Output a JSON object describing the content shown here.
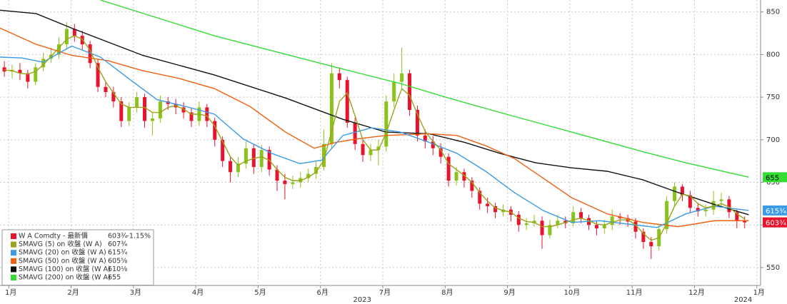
{
  "chart_data": {
    "type": "candlestick",
    "xlim": [
      -0.14,
      12.06
    ],
    "xticks": [
      {
        "value": 0,
        "label": "1月"
      },
      {
        "value": 1,
        "label": "2月"
      },
      {
        "value": 2,
        "label": "3月"
      },
      {
        "value": 3,
        "label": "4月"
      },
      {
        "value": 4,
        "label": "5月"
      },
      {
        "value": 5,
        "label": "6月"
      },
      {
        "value": 6,
        "label": "7月"
      },
      {
        "value": 7,
        "label": "8月"
      },
      {
        "value": 8,
        "label": "9月"
      },
      {
        "value": 9,
        "label": "10月"
      },
      {
        "value": 10,
        "label": "11月"
      },
      {
        "value": 11,
        "label": "12月"
      },
      {
        "value": 12,
        "label": "1月"
      }
    ],
    "year_labels": [
      {
        "value": 5.67,
        "label": "2023"
      },
      {
        "value": 11.78,
        "label": "2024"
      }
    ],
    "ylim": [
      529,
      864
    ],
    "yticks": [
      550,
      600,
      650,
      700,
      750,
      800,
      850
    ],
    "grid": true,
    "legend": "lower-left",
    "series": [
      {
        "name": "W A Comdty - 最新價",
        "value_label": "603¾",
        "change_label": "-1.15%",
        "color": "#e8132c",
        "up_color": "#8cc21c",
        "down_color": "#e8132c",
        "price_tag": true,
        "x": [
          -0.07,
          0.055,
          0.18,
          0.305,
          0.43,
          0.555,
          0.68,
          0.805,
          0.93,
          1.055,
          1.18,
          1.305,
          1.43,
          1.555,
          1.68,
          1.805,
          1.93,
          2.055,
          2.18,
          2.305,
          2.43,
          2.555,
          2.68,
          2.805,
          2.93,
          3.055,
          3.18,
          3.305,
          3.43,
          3.555,
          3.68,
          3.805,
          3.93,
          4.055,
          4.18,
          4.305,
          4.43,
          4.555,
          4.68,
          4.805,
          4.93,
          5.055,
          5.18,
          5.305,
          5.43,
          5.555,
          5.68,
          5.805,
          5.93,
          6.055,
          6.18,
          6.305,
          6.43,
          6.555,
          6.68,
          6.805,
          6.93,
          7.055,
          7.18,
          7.305,
          7.43,
          7.555,
          7.68,
          7.805,
          7.93,
          8.055,
          8.18,
          8.305,
          8.43,
          8.555,
          8.68,
          8.805,
          8.93,
          9.055,
          9.18,
          9.305,
          9.43,
          9.555,
          9.68,
          9.805,
          9.93,
          10.055,
          10.18,
          10.305,
          10.43,
          10.555,
          10.68,
          10.805,
          10.93,
          11.055,
          11.18,
          11.305,
          11.43,
          11.555,
          11.68,
          11.805
        ],
        "open": [
          785,
          780,
          782,
          778,
          768,
          785,
          795,
          800,
          812,
          830,
          822,
          812,
          790,
          762,
          756,
          745,
          722,
          738,
          750,
          722,
          725,
          745,
          742,
          738,
          732,
          722,
          738,
          722,
          700,
          675,
          662,
          672,
          690,
          668,
          688,
          665,
          652,
          648,
          650,
          655,
          660,
          668,
          695,
          778,
          770,
          720,
          695,
          682,
          688,
          692,
          745,
          768,
          778,
          735,
          705,
          698,
          690,
          680,
          652,
          662,
          652,
          640,
          625,
          622,
          615,
          618,
          612,
          600,
          602,
          605,
          588,
          600,
          605,
          602,
          615,
          608,
          600,
          596,
          600,
          610,
          608,
          604,
          592,
          580,
          575,
          595,
          628,
          645,
          635,
          620,
          616,
          618,
          628,
          630,
          615,
          605
        ],
        "high": [
          792,
          788,
          790,
          782,
          790,
          802,
          808,
          820,
          838,
          836,
          828,
          816,
          794,
          768,
          762,
          750,
          744,
          756,
          754,
          732,
          752,
          750,
          748,
          744,
          738,
          745,
          742,
          726,
          704,
          680,
          680,
          698,
          694,
          694,
          692,
          670,
          660,
          658,
          662,
          666,
          674,
          712,
          790,
          785,
          774,
          726,
          700,
          695,
          700,
          752,
          778,
          808,
          782,
          740,
          712,
          704,
          696,
          684,
          668,
          666,
          656,
          644,
          632,
          626,
          624,
          622,
          616,
          608,
          612,
          610,
          606,
          612,
          610,
          622,
          620,
          612,
          604,
          606,
          618,
          614,
          612,
          608,
          596,
          586,
          600,
          634,
          650,
          648,
          640,
          626,
          624,
          640,
          638,
          634,
          618,
          610
        ],
        "low": [
          774,
          772,
          770,
          760,
          764,
          780,
          790,
          795,
          806,
          815,
          805,
          784,
          756,
          750,
          738,
          715,
          716,
          732,
          714,
          705,
          720,
          735,
          730,
          725,
          715,
          716,
          715,
          692,
          668,
          650,
          656,
          666,
          660,
          662,
          658,
          640,
          630,
          642,
          644,
          650,
          654,
          664,
          690,
          760,
          714,
          688,
          674,
          675,
          670,
          686,
          738,
          760,
          728,
          698,
          690,
          682,
          672,
          645,
          646,
          644,
          632,
          618,
          614,
          608,
          610,
          604,
          592,
          594,
          598,
          572,
          584,
          596,
          596,
          598,
          602,
          594,
          588,
          590,
          594,
          600,
          598,
          584,
          572,
          560,
          570,
          590,
          622,
          628,
          614,
          610,
          610,
          612,
          620,
          608,
          596,
          596
        ],
        "close": [
          780,
          782,
          778,
          768,
          785,
          795,
          800,
          812,
          830,
          822,
          812,
          790,
          762,
          756,
          745,
          722,
          738,
          750,
          722,
          725,
          745,
          742,
          738,
          732,
          722,
          738,
          722,
          700,
          675,
          662,
          672,
          690,
          668,
          688,
          665,
          652,
          648,
          650,
          655,
          660,
          668,
          695,
          778,
          770,
          720,
          695,
          682,
          688,
          692,
          745,
          768,
          778,
          735,
          705,
          698,
          690,
          680,
          652,
          662,
          652,
          640,
          625,
          622,
          615,
          618,
          612,
          600,
          602,
          605,
          588,
          600,
          605,
          602,
          615,
          608,
          600,
          596,
          600,
          610,
          608,
          604,
          592,
          580,
          575,
          595,
          628,
          645,
          635,
          620,
          616,
          618,
          628,
          630,
          615,
          605,
          603
        ]
      },
      {
        "name": "SMAVG (5)  on 收盤 (W A)",
        "value_label": "607¾",
        "color": "#9aa31a",
        "x": [
          -0.07,
          0.055,
          0.18,
          0.305,
          0.43,
          0.555,
          0.68,
          0.805,
          0.93,
          1.055,
          1.18,
          1.305,
          1.43,
          1.555,
          1.68,
          1.805,
          1.93,
          2.055,
          2.18,
          2.305,
          2.43,
          2.555,
          2.68,
          2.805,
          2.93,
          3.055,
          3.18,
          3.305,
          3.43,
          3.555,
          3.68,
          3.805,
          3.93,
          4.055,
          4.18,
          4.305,
          4.43,
          4.555,
          4.68,
          4.805,
          4.93,
          5.055,
          5.18,
          5.305,
          5.43,
          5.555,
          5.68,
          5.805,
          5.93,
          6.055,
          6.18,
          6.305,
          6.43,
          6.555,
          6.68,
          6.805,
          6.93,
          7.055,
          7.18,
          7.305,
          7.43,
          7.555,
          7.68,
          7.805,
          7.93,
          8.055,
          8.18,
          8.305,
          8.43,
          8.555,
          8.68,
          8.805,
          8.93,
          9.055,
          9.18,
          9.305,
          9.43,
          9.555,
          9.68,
          9.805,
          9.93,
          10.055,
          10.18,
          10.305,
          10.43,
          10.555,
          10.68,
          10.805,
          10.93,
          11.055,
          11.18,
          11.305,
          11.43,
          11.555,
          11.68,
          11.805
        ],
        "values": [
          782,
          781,
          778,
          777,
          780,
          788,
          798,
          808,
          818,
          822,
          818,
          805,
          785,
          768,
          755,
          742,
          738,
          738,
          738,
          732,
          732,
          738,
          740,
          736,
          730,
          730,
          728,
          716,
          698,
          680,
          670,
          675,
          678,
          680,
          676,
          665,
          656,
          652,
          652,
          656,
          662,
          676,
          710,
          745,
          755,
          728,
          700,
          688,
          688,
          708,
          735,
          760,
          752,
          730,
          710,
          698,
          688,
          672,
          665,
          658,
          650,
          638,
          628,
          620,
          617,
          615,
          608,
          604,
          603,
          598,
          598,
          600,
          603,
          606,
          608,
          605,
          601,
          600,
          603,
          606,
          606,
          600,
          590,
          582,
          585,
          602,
          622,
          636,
          634,
          625,
          620,
          622,
          625,
          621,
          613,
          607
        ]
      },
      {
        "name": "SMAVG (20)  on 收盤 (W A)",
        "value_label": "615¾",
        "color": "#3a9be6",
        "price_tag": true,
        "x": [
          -0.14,
          0.21,
          0.55,
          1.01,
          1.47,
          1.92,
          2.38,
          2.84,
          3.3,
          3.76,
          4.22,
          4.67,
          5.02,
          5.36,
          5.82,
          6.28,
          6.74,
          7.19,
          7.65,
          8.11,
          8.57,
          9.03,
          9.48,
          9.94,
          10.4,
          10.86,
          11.32,
          11.87
        ],
        "values": [
          797,
          796,
          791,
          810,
          797,
          772,
          747,
          739,
          730,
          701,
          684,
          672,
          676,
          705,
          714,
          709,
          697,
          684,
          663,
          638,
          617,
          603,
          605,
          601,
          597,
          613,
          622,
          617
        ]
      },
      {
        "name": "SMAVG (50)  on 收盤 (W A)",
        "value_label": "605⅝",
        "color": "#f0600f",
        "x": [
          -0.14,
          0.44,
          1.01,
          1.58,
          2.15,
          2.73,
          3.3,
          3.87,
          4.44,
          4.9,
          5.25,
          5.59,
          6.05,
          6.74,
          7.19,
          7.65,
          8.11,
          8.57,
          9.03,
          9.6,
          10.17,
          10.74,
          11.32,
          11.87
        ],
        "values": [
          831,
          812,
          799,
          793,
          781,
          772,
          760,
          739,
          709,
          690,
          697,
          701,
          705,
          707,
          705,
          693,
          678,
          655,
          632,
          613,
          603,
          598,
          605,
          605
        ]
      },
      {
        "name": "SMAVG (100)  on 收盤 (W A)",
        "value_label": "610⅛",
        "color": "#111111",
        "x": [
          -0.14,
          0.44,
          1.01,
          2.15,
          3.3,
          4.44,
          5.36,
          6.05,
          6.74,
          7.31,
          7.88,
          8.45,
          9.03,
          9.6,
          10.17,
          10.74,
          11.32,
          11.87
        ],
        "values": [
          852,
          848,
          831,
          799,
          776,
          749,
          724,
          709,
          707,
          697,
          684,
          673,
          667,
          663,
          653,
          638,
          624,
          612
        ]
      },
      {
        "name": "SMAVG (200)  on 收盤 (W A)",
        "value_label": "655",
        "color": "#33dd33",
        "price_tag": true,
        "x": [
          1.47,
          3.3,
          5.25,
          6.28,
          6.96,
          7.88,
          9.03,
          10.17,
          10.86,
          11.87
        ],
        "values": [
          864,
          822,
          785,
          766,
          751,
          732,
          709,
          686,
          673,
          656
        ]
      }
    ]
  }
}
